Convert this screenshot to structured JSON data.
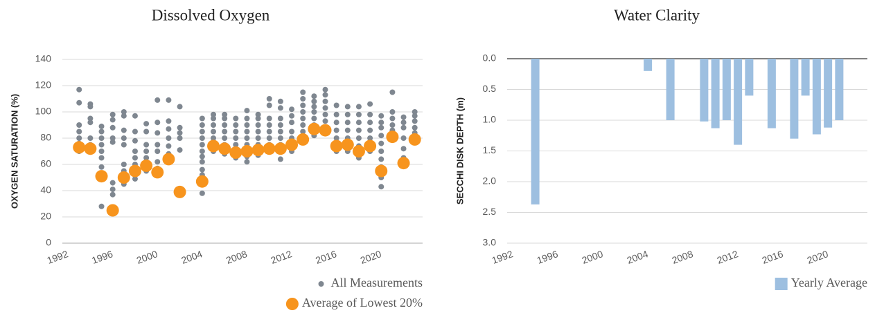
{
  "chart_data": [
    {
      "type": "scatter",
      "title": "Dissolved Oxygen",
      "ylabel": "OXYGEN SATURATION (%)",
      "xlim": [
        1991.5,
        2023.7
      ],
      "xticks": [
        1992,
        1996,
        2000,
        2004,
        2008,
        2012,
        2016,
        2020
      ],
      "ylim": [
        0,
        140
      ],
      "yticks": [
        0,
        20,
        40,
        60,
        80,
        100,
        120,
        140
      ],
      "grid": true,
      "legend": "lower right",
      "series": [
        {
          "name": "All Measurements",
          "color": "#7f8790",
          "x": [
            1993,
            1993,
            1993,
            1993,
            1993,
            1993,
            1993,
            1993,
            1994,
            1994,
            1994,
            1994,
            1994,
            1994,
            1994,
            1995,
            1995,
            1995,
            1995,
            1995,
            1995,
            1995,
            1995,
            1995,
            1996,
            1996,
            1996,
            1996,
            1996,
            1996,
            1996,
            1996,
            1997,
            1997,
            1997,
            1997,
            1997,
            1997,
            1997,
            1997,
            1997,
            1998,
            1998,
            1998,
            1998,
            1998,
            1998,
            1998,
            1998,
            1999,
            1999,
            1999,
            1999,
            1999,
            1999,
            1999,
            2000,
            2000,
            2000,
            2000,
            2000,
            2000,
            2000,
            2001,
            2001,
            2001,
            2001,
            2001,
            2001,
            2001,
            2002,
            2002,
            2002,
            2002,
            2002,
            2004,
            2004,
            2004,
            2004,
            2004,
            2004,
            2004,
            2004,
            2004,
            2004,
            2004,
            2005,
            2005,
            2005,
            2005,
            2005,
            2005,
            2005,
            2006,
            2006,
            2006,
            2006,
            2006,
            2006,
            2006,
            2006,
            2007,
            2007,
            2007,
            2007,
            2007,
            2007,
            2007,
            2008,
            2008,
            2008,
            2008,
            2008,
            2008,
            2008,
            2008,
            2008,
            2009,
            2009,
            2009,
            2009,
            2009,
            2009,
            2009,
            2009,
            2010,
            2010,
            2010,
            2010,
            2010,
            2010,
            2010,
            2010,
            2011,
            2011,
            2011,
            2011,
            2011,
            2011,
            2011,
            2011,
            2011,
            2012,
            2012,
            2012,
            2012,
            2012,
            2012,
            2012,
            2013,
            2013,
            2013,
            2013,
            2013,
            2013,
            2013,
            2013,
            2014,
            2014,
            2014,
            2014,
            2014,
            2014,
            2014,
            2014,
            2015,
            2015,
            2015,
            2015,
            2015,
            2015,
            2015,
            2015,
            2016,
            2016,
            2016,
            2016,
            2016,
            2016,
            2016,
            2017,
            2017,
            2017,
            2017,
            2017,
            2017,
            2017,
            2018,
            2018,
            2018,
            2018,
            2018,
            2018,
            2018,
            2019,
            2019,
            2019,
            2019,
            2019,
            2019,
            2019,
            2020,
            2020,
            2020,
            2020,
            2020,
            2020,
            2020,
            2020,
            2020,
            2020,
            2021,
            2021,
            2021,
            2021,
            2021,
            2021,
            2022,
            2022,
            2022,
            2022,
            2022,
            2022,
            2022,
            2023,
            2023,
            2023,
            2023,
            2023,
            2023
          ],
          "values": [
            117,
            107,
            90,
            85,
            80,
            76,
            72,
            70,
            106,
            104,
            95,
            92,
            80,
            75,
            72,
            89,
            85,
            80,
            75,
            70,
            65,
            58,
            52,
            28,
            98,
            94,
            88,
            80,
            77,
            46,
            41,
            37,
            100,
            97,
            86,
            80,
            75,
            60,
            55,
            50,
            45,
            97,
            85,
            78,
            70,
            65,
            60,
            55,
            49,
            91,
            85,
            75,
            70,
            65,
            60,
            55,
            109,
            92,
            84,
            75,
            70,
            62,
            57,
            109,
            93,
            87,
            80,
            74,
            68,
            65,
            104,
            88,
            84,
            80,
            71,
            95,
            90,
            85,
            80,
            75,
            70,
            66,
            62,
            56,
            52,
            38,
            98,
            95,
            90,
            85,
            80,
            75,
            70,
            98,
            95,
            90,
            85,
            80,
            75,
            72,
            68,
            95,
            90,
            85,
            80,
            75,
            70,
            65,
            101,
            95,
            90,
            85,
            80,
            75,
            70,
            66,
            62,
            98,
            95,
            90,
            85,
            80,
            75,
            70,
            67,
            110,
            105,
            95,
            90,
            85,
            80,
            75,
            70,
            108,
            103,
            95,
            90,
            85,
            80,
            75,
            70,
            64,
            102,
            97,
            92,
            85,
            80,
            75,
            70,
            115,
            110,
            105,
            100,
            95,
            90,
            85,
            80,
            112,
            108,
            104,
            100,
            95,
            90,
            85,
            82,
            117,
            113,
            108,
            103,
            98,
            93,
            88,
            84,
            105,
            98,
            92,
            86,
            80,
            75,
            70,
            104,
            98,
            92,
            86,
            80,
            75,
            70,
            104,
            98,
            92,
            86,
            80,
            74,
            65,
            106,
            98,
            92,
            86,
            80,
            75,
            70,
            97,
            92,
            88,
            82,
            76,
            70,
            64,
            58,
            50,
            43,
            115,
            100,
            95,
            90,
            86,
            82,
            96,
            92,
            88,
            80,
            72,
            65,
            59,
            100,
            97,
            93,
            88,
            84,
            80
          ]
        },
        {
          "name": "Average of Lowest 20%",
          "color": "#f7941d",
          "x": [
            1993,
            1994,
            1995,
            1996,
            1997,
            1998,
            1999,
            2000,
            2001,
            2002,
            2004,
            2005,
            2006,
            2007,
            2008,
            2009,
            2010,
            2011,
            2012,
            2013,
            2014,
            2015,
            2016,
            2017,
            2018,
            2019,
            2020,
            2021,
            2022,
            2023
          ],
          "values": [
            73,
            72,
            51,
            25,
            50,
            55,
            59,
            54,
            64,
            39,
            47,
            74,
            72,
            69,
            70,
            71,
            72,
            72,
            75,
            79,
            87,
            86,
            74,
            75,
            70,
            74,
            55,
            81,
            61,
            79
          ]
        }
      ]
    },
    {
      "type": "bar",
      "title": "Water Clarity",
      "ylabel": "SECCHI DISK DEPTH (m)",
      "xlim": [
        1991.5,
        2023.5
      ],
      "xticks": [
        1992,
        1996,
        2000,
        2004,
        2008,
        2012,
        2016,
        2020
      ],
      "ylim": [
        0,
        3
      ],
      "yreverse": true,
      "yticks": [
        {
          "value": 0,
          "label": "0.0"
        },
        0.5,
        {
          "value": 1,
          "label": "1.0"
        },
        1.5,
        {
          "value": 2,
          "label": "2.0"
        },
        2.5,
        {
          "value": 3,
          "label": "3.0"
        }
      ],
      "grid": true,
      "legend": "lower right",
      "series": [
        {
          "name": "Yearly Average",
          "color": "#9dbfe0",
          "x": [
            1994,
            2004,
            2006,
            2009,
            2010,
            2011,
            2012,
            2013,
            2015,
            2017,
            2018,
            2019,
            2020,
            2021
          ],
          "values": [
            2.37,
            0.2,
            1.0,
            1.02,
            1.13,
            1.0,
            1.4,
            0.6,
            1.13,
            1.3,
            0.6,
            1.23,
            1.12,
            1.0
          ]
        }
      ]
    }
  ]
}
